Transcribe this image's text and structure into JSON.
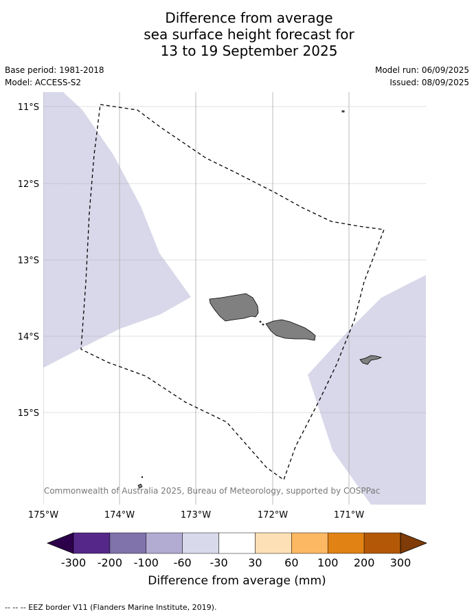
{
  "header": {
    "title_lines": [
      "Difference from average",
      "sea surface height forecast for",
      "13 to 19 September 2025"
    ],
    "base_period": "Base period: 1981-2018",
    "model": "Model: ACCESS-S2",
    "model_run": "Model run: 06/09/2025",
    "issued": "Issued: 08/09/2025"
  },
  "map": {
    "lat_labels": [
      "11°S",
      "12°S",
      "13°S",
      "14°S",
      "15°S"
    ],
    "lon_labels": [
      "175°W",
      "174°W",
      "173°W",
      "172°W",
      "171°W"
    ],
    "copyright": "© Commonwealth of Australia 2025, Bureau of Meteorology, supported by COSPPac",
    "anomaly_fill_color": "#d8d8ea",
    "land_color": "#808080",
    "eez_style": "dashed"
  },
  "colorbar": {
    "title": "Difference from average (mm)",
    "tick_labels": [
      "-300",
      "-200",
      "-100",
      "-60",
      "-30",
      "30",
      "60",
      "100",
      "200",
      "300"
    ],
    "colors": [
      "#2d004b",
      "#542788",
      "#8073ac",
      "#b2abd2",
      "#d8daeb",
      "#ffffff",
      "#fee0b6",
      "#fdb863",
      "#e08214",
      "#b35806",
      "#7f3b08"
    ]
  },
  "footer": {
    "legend_text": "--  --  -- EEZ border V11 (Flanders Marine Institute, 2019)."
  }
}
